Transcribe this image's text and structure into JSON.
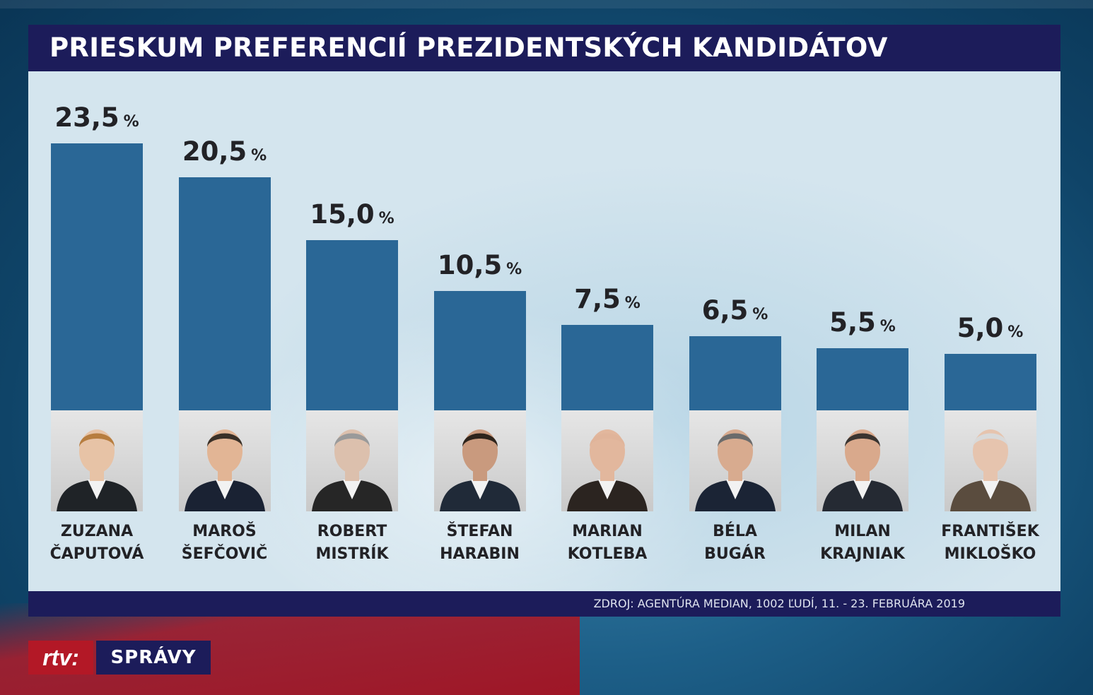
{
  "title": "PRIESKUM PREFERENCIÍ PREZIDENTSKÝCH KANDIDÁTOV",
  "source": "ZDROJ: AGENTÚRA MEDIAN, 1002 ĽUDÍ, 11. - 23. FEBRUÁRA 2019",
  "logo": {
    "brand": "rtv:",
    "section": "SPRÁVY"
  },
  "colors": {
    "bar": "#2a6796",
    "title_bar": "#1c1c5a",
    "panel": "#d4e5ee",
    "logo_red": "#b31826"
  },
  "chart_data": {
    "type": "bar",
    "title": "PRIESKUM PREFERENCIÍ PREZIDENTSKÝCH KANDIDÁTOV",
    "unit": "%",
    "categories": [
      [
        "ZUZANA",
        "ČAPUTOVÁ"
      ],
      [
        "MAROŠ",
        "ŠEFČOVIČ"
      ],
      [
        "ROBERT",
        "MISTRÍK"
      ],
      [
        "ŠTEFAN",
        "HARABIN"
      ],
      [
        "MARIAN",
        "KOTLEBA"
      ],
      [
        "BÉLA",
        "BUGÁR"
      ],
      [
        "MILAN",
        "KRAJNIAK"
      ],
      [
        "FRANTIŠEK",
        "MIKLOŠKO"
      ]
    ],
    "values": [
      23.5,
      20.5,
      15.0,
      10.5,
      7.5,
      6.5,
      5.5,
      5.0
    ],
    "labels": [
      "23,5",
      "20,5",
      "15,0",
      "10,5",
      "7,5",
      "6,5",
      "5,5",
      "5,0"
    ],
    "ylim": [
      0,
      23.5
    ],
    "grid": false,
    "legend": "none"
  }
}
